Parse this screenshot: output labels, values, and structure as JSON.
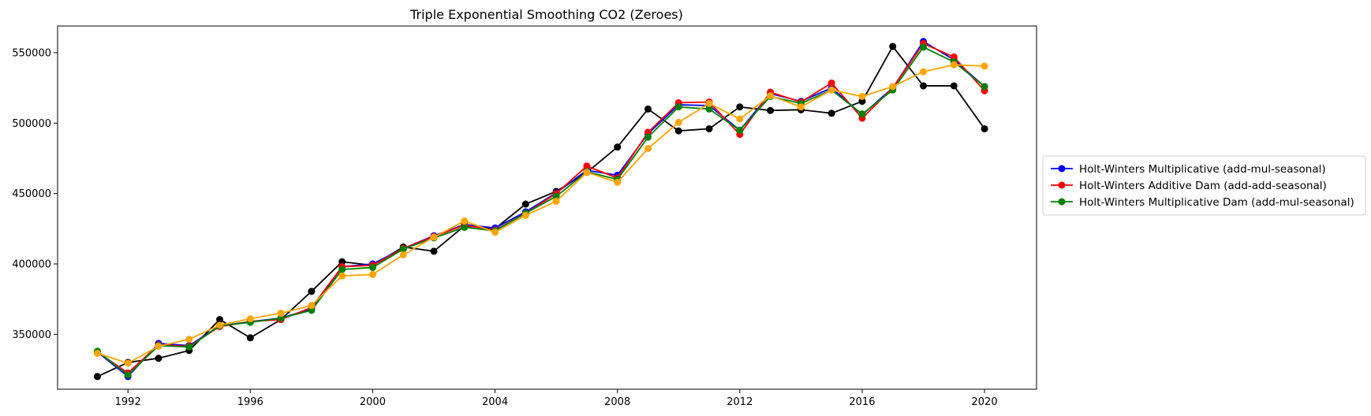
{
  "chart_data": {
    "type": "line",
    "title": "Triple Exponential Smoothing CO2 (Zeroes)",
    "xlabel": "",
    "ylabel": "",
    "xlim": [
      1989.7,
      2021.7
    ],
    "ylim": [
      311000,
      569000
    ],
    "x_ticks": [
      1992,
      1996,
      2000,
      2004,
      2008,
      2012,
      2016,
      2020
    ],
    "y_ticks": [
      350000,
      400000,
      450000,
      500000,
      550000
    ],
    "grid": false,
    "legend_position": "center-right, outside plot",
    "x": [
      1991,
      1992,
      1993,
      1994,
      1995,
      1996,
      1997,
      1998,
      1999,
      2000,
      2001,
      2002,
      2003,
      2004,
      2005,
      2006,
      2007,
      2008,
      2009,
      2010,
      2011,
      2012,
      2013,
      2014,
      2015,
      2016,
      2017,
      2018,
      2019,
      2020
    ],
    "series": [
      {
        "color": "#000000",
        "values": [
          320000,
          330000,
          333000,
          338500,
          360500,
          347500,
          360500,
          380500,
          401500,
          399000,
          412000,
          409000,
          427000,
          425000,
          442500,
          451500,
          465000,
          483000,
          510000,
          494500,
          496000,
          511500,
          509000,
          509500,
          507000,
          515500,
          554500,
          526500,
          526500,
          496000
        ]
      },
      {
        "name": "Holt-Winters Multiplicative (add-mul-seasonal)",
        "color": "#0000ff",
        "values": [
          337500,
          320000,
          343500,
          342000,
          356000,
          359000,
          361500,
          368000,
          398000,
          400000,
          411000,
          420000,
          428000,
          425500,
          437000,
          450500,
          466500,
          463000,
          492500,
          513000,
          512500,
          495000,
          521000,
          515500,
          525000,
          506000,
          525000,
          558000,
          545000,
          526000
        ]
      },
      {
        "name": "Holt-Winters Additive Dam (add-add-seasonal)",
        "color": "#ff0000",
        "values": [
          337500,
          322500,
          342500,
          341500,
          355500,
          359000,
          360500,
          369000,
          398000,
          399000,
          411000,
          419500,
          427500,
          424000,
          436000,
          450000,
          469500,
          461000,
          493500,
          514500,
          515000,
          492000,
          522000,
          515000,
          528500,
          503500,
          525000,
          556500,
          547000,
          523000
        ]
      },
      {
        "name": "Holt-Winters Multiplicative Dam (add-mul-seasonal)",
        "color": "#008000",
        "values": [
          338000,
          321000,
          342000,
          341000,
          356000,
          358500,
          361500,
          367000,
          396000,
          397500,
          410500,
          418500,
          426000,
          423500,
          436000,
          448000,
          465500,
          460000,
          490000,
          511500,
          510000,
          495000,
          519000,
          514000,
          523500,
          506500,
          523500,
          554000,
          543500,
          526000
        ]
      },
      {
        "color": "#ffa500",
        "values": [
          336500,
          329500,
          341500,
          346500,
          356500,
          361000,
          365000,
          370500,
          391500,
          392500,
          406500,
          419000,
          430500,
          422500,
          434500,
          444500,
          465000,
          458000,
          482000,
          500500,
          514000,
          503000,
          519500,
          511500,
          523500,
          519000,
          526000,
          536500,
          541500,
          540500
        ]
      }
    ]
  }
}
